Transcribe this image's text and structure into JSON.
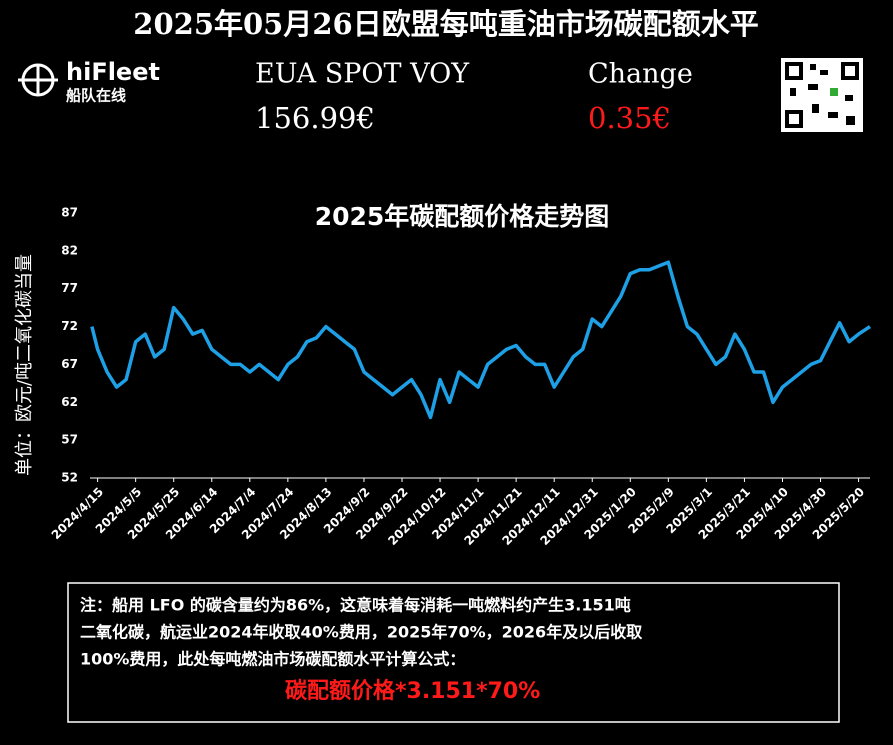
{
  "header": {
    "title": "2025年05月26日欧盟每吨重油市场碳配额水平",
    "brand": "hiFleet",
    "brand_sub": "船队在线",
    "spot_label": "EUA SPOT VOY",
    "spot_value": "156.99€",
    "change_label": "Change",
    "change_value": "0.35€"
  },
  "chart_data": {
    "type": "line",
    "title": "2025年碳配额价格走势图",
    "y_label": "单位：欧元/吨二氧化碳当量",
    "color": "#1ea0e6",
    "grid": false,
    "ylim": [
      52,
      87
    ],
    "yticks": [
      52,
      57,
      62,
      67,
      72,
      77,
      82,
      87
    ],
    "xlim": [
      "2024/4/11",
      "2025/5/26"
    ],
    "xticks": [
      "2024/4/15",
      "2024/5/5",
      "2024/5/25",
      "2024/6/14",
      "2024/7/4",
      "2024/7/24",
      "2024/8/13",
      "2024/9/2",
      "2024/9/22",
      "2024/10/12",
      "2024/11/1",
      "2024/11/21",
      "2024/12/11",
      "2024/12/31",
      "2025/1/20",
      "2025/2/9",
      "2025/3/1",
      "2025/3/21",
      "2025/4/10",
      "2025/4/30",
      "2025/5/20"
    ],
    "x": [
      "2024/4/12",
      "2024/4/15",
      "2024/4/20",
      "2024/4/25",
      "2024/4/30",
      "2024/5/5",
      "2024/5/10",
      "2024/5/15",
      "2024/5/20",
      "2024/5/25",
      "2024/5/30",
      "2024/6/4",
      "2024/6/9",
      "2024/6/14",
      "2024/6/19",
      "2024/6/24",
      "2024/6/29",
      "2024/7/4",
      "2024/7/9",
      "2024/7/14",
      "2024/7/19",
      "2024/7/24",
      "2024/7/29",
      "2024/8/3",
      "2024/8/8",
      "2024/8/13",
      "2024/8/18",
      "2024/8/23",
      "2024/8/28",
      "2024/9/2",
      "2024/9/7",
      "2024/9/12",
      "2024/9/17",
      "2024/9/22",
      "2024/9/27",
      "2024/10/2",
      "2024/10/7",
      "2024/10/12",
      "2024/10/17",
      "2024/10/22",
      "2024/10/27",
      "2024/11/1",
      "2024/11/6",
      "2024/11/11",
      "2024/11/16",
      "2024/11/21",
      "2024/11/26",
      "2024/12/1",
      "2024/12/6",
      "2024/12/11",
      "2024/12/16",
      "2024/12/21",
      "2024/12/26",
      "2024/12/31",
      "2025/1/5",
      "2025/1/10",
      "2025/1/15",
      "2025/1/20",
      "2025/1/25",
      "2025/1/30",
      "2025/2/4",
      "2025/2/9",
      "2025/2/14",
      "2025/2/19",
      "2025/2/24",
      "2025/3/1",
      "2025/3/6",
      "2025/3/11",
      "2025/3/16",
      "2025/3/21",
      "2025/3/26",
      "2025/3/31",
      "2025/4/5",
      "2025/4/10",
      "2025/4/15",
      "2025/4/20",
      "2025/4/25",
      "2025/4/30",
      "2025/5/5",
      "2025/5/10",
      "2025/5/15",
      "2025/5/20",
      "2025/5/26"
    ],
    "values": [
      72,
      69,
      66,
      64,
      65,
      70,
      71,
      68,
      69,
      74.5,
      73,
      71,
      71.5,
      69,
      68,
      67,
      67,
      66,
      67,
      66,
      65,
      67,
      68,
      70,
      70.5,
      72,
      71,
      70,
      69,
      66,
      65,
      64,
      63,
      64,
      65,
      63,
      60,
      65,
      62,
      66,
      65,
      64,
      67,
      68,
      69,
      69.5,
      68,
      67,
      67,
      64,
      66,
      68,
      69,
      73,
      72,
      74,
      76,
      79,
      79.5,
      79.5,
      80,
      80.5,
      76,
      72,
      71,
      69,
      67,
      68,
      71,
      69,
      66,
      66,
      62,
      64,
      65,
      66,
      67,
      67.5,
      70,
      72.5,
      70,
      71,
      72
    ]
  },
  "notes": {
    "lines": [
      "注：船用 LFO 的碳含量约为86%，这意味着每消耗一吨燃料约产生3.151吨",
      "二氧化碳，航运业2024年收取40%费用，2025年70%，2026年及以后收取",
      "100%费用，此处每吨燃油市场碳配额水平计算公式："
    ],
    "formula": "碳配额价格*3.151*70%"
  }
}
